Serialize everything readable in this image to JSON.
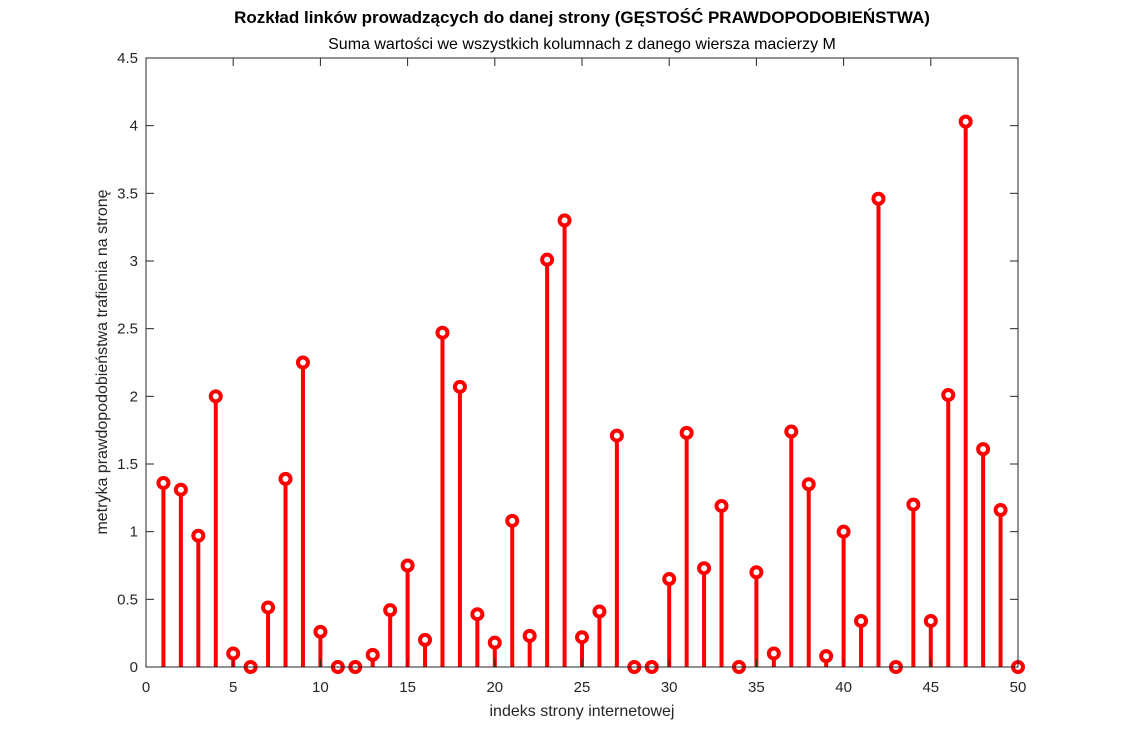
{
  "chart_data": {
    "type": "stem",
    "title": "Rozkład linków prowadzących do danej strony (GĘSTOŚĆ PRAWDOPODOBIEŃSTWA)",
    "subtitle": "Suma wartości we wszystkich kolumnach z danego wiersza macierzy M",
    "xlabel": "indeks strony internetowej",
    "ylabel": "metryka prawdopodobieństwa trafienia na stronę",
    "xlim": [
      0,
      50
    ],
    "ylim": [
      0,
      4.5
    ],
    "xticks": [
      "0",
      "5",
      "10",
      "15",
      "20",
      "25",
      "30",
      "35",
      "40",
      "45",
      "50"
    ],
    "yticks": [
      "0",
      "0.5",
      "1",
      "1.5",
      "2",
      "2.5",
      "3",
      "3.5",
      "4",
      "4.5"
    ],
    "grid": false,
    "color": "#ff0000",
    "x": [
      1,
      2,
      3,
      4,
      5,
      6,
      7,
      8,
      9,
      10,
      11,
      12,
      13,
      14,
      15,
      16,
      17,
      18,
      19,
      20,
      21,
      22,
      23,
      24,
      25,
      26,
      27,
      28,
      29,
      30,
      31,
      32,
      33,
      34,
      35,
      36,
      37,
      38,
      39,
      40,
      41,
      42,
      43,
      44,
      45,
      46,
      47,
      48,
      49,
      50
    ],
    "values": [
      1.36,
      1.31,
      0.97,
      2.0,
      0.1,
      0.0,
      0.44,
      1.39,
      2.25,
      0.26,
      0.0,
      0.0,
      0.09,
      0.42,
      0.75,
      0.2,
      2.47,
      2.07,
      0.39,
      0.18,
      1.08,
      0.23,
      3.01,
      3.3,
      0.22,
      0.41,
      1.71,
      0.0,
      0.0,
      0.65,
      1.73,
      0.73,
      1.19,
      0.0,
      0.7,
      0.1,
      1.74,
      1.35,
      0.08,
      1.0,
      0.34,
      3.46,
      0.0,
      1.2,
      0.34,
      2.01,
      4.03,
      1.61,
      1.16,
      0.0
    ]
  }
}
